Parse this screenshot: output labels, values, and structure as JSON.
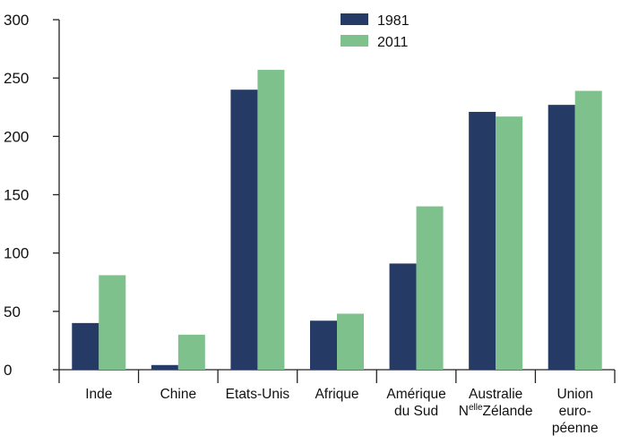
{
  "chart_data": {
    "type": "bar",
    "categories": [
      [
        "Inde"
      ],
      [
        "Chine"
      ],
      [
        "Etats-Unis"
      ],
      [
        "Afrique"
      ],
      [
        "Amérique",
        "du Sud"
      ],
      [
        "Australie",
        "Nelle Zélande"
      ],
      [
        "Union",
        "euro-",
        "péenne"
      ]
    ],
    "series": [
      {
        "name": "1981",
        "color": "#253a64",
        "values": [
          40,
          4,
          240,
          42,
          91,
          221,
          227
        ]
      },
      {
        "name": "2011",
        "color": "#7ec18d",
        "values": [
          81,
          30,
          257,
          48,
          140,
          217,
          239
        ]
      }
    ],
    "ylim": [
      0,
      300
    ],
    "yticks": [
      0,
      50,
      100,
      150,
      200,
      250,
      300
    ],
    "xlabel": "",
    "ylabel": "",
    "title": "",
    "grid": false,
    "legend_position": "top-center"
  }
}
